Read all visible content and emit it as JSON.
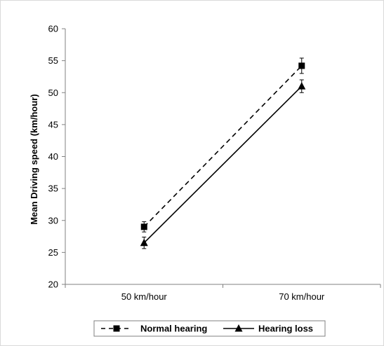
{
  "chart_data": {
    "type": "line",
    "title": "",
    "xlabel": "",
    "ylabel": "Mean Driving speed (km/hour)",
    "categories": [
      "50 km/hour",
      "70 km/hour"
    ],
    "y_ticks": [
      "20",
      "25",
      "30",
      "35",
      "40",
      "45",
      "50",
      "55",
      "60"
    ],
    "ylim": [
      20,
      60
    ],
    "grid": false,
    "legend_position": "bottom",
    "series": [
      {
        "name": "Normal hearing",
        "values": [
          29.0,
          54.2
        ],
        "error": [
          0.8,
          1.2
        ],
        "marker": "square",
        "line_style": "dashed",
        "color": "#000000"
      },
      {
        "name": "Hearing loss",
        "values": [
          26.5,
          51.0
        ],
        "error": [
          0.9,
          1.0
        ],
        "marker": "triangle",
        "line_style": "solid",
        "color": "#000000"
      }
    ]
  }
}
